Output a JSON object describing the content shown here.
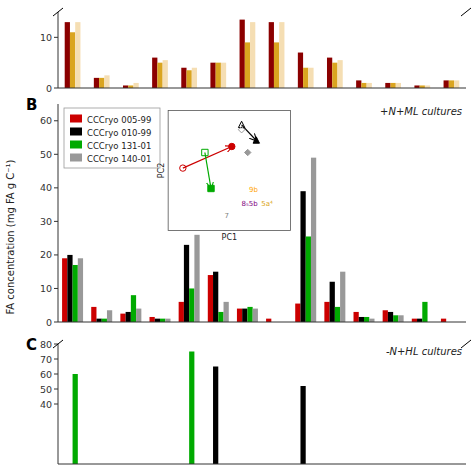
{
  "chart_data": [
    {
      "type": "bar",
      "categories": [
        null,
        null,
        null,
        null,
        null,
        null,
        null,
        null,
        null,
        null,
        null,
        null,
        null,
        null
      ],
      "series": [
        {
          "color": "#8B0000",
          "values": [
            13,
            2,
            0.5,
            6,
            4,
            5,
            13.5,
            13,
            7,
            6,
            1.5,
            1,
            0.5,
            1.5
          ]
        },
        {
          "color": "#DAA520",
          "values": [
            11,
            2,
            0.5,
            5,
            3.5,
            5,
            9,
            9,
            4,
            5,
            1,
            1,
            0.5,
            1.5
          ]
        },
        {
          "color": "#F5DEB3",
          "values": [
            13,
            2.5,
            1,
            5.5,
            4,
            5,
            13,
            13,
            4,
            5.5,
            1,
            1,
            0.5,
            1.5
          ]
        }
      ],
      "ylim": [
        0,
        15
      ],
      "yticks": [
        0,
        10
      ],
      "grid": false,
      "tick_labels": "y"
    },
    {
      "type": "bar",
      "title": "+N+ML cultures",
      "ylabel": "FA concentration (mg FA g C⁻¹)",
      "categories": [
        null,
        null,
        null,
        null,
        null,
        null,
        null,
        null,
        null,
        null,
        null,
        null,
        null,
        null
      ],
      "series": [
        {
          "name": "CCCryo 005-99",
          "color": "#CC0000",
          "values": [
            19,
            4.5,
            2.5,
            1.5,
            6,
            14,
            4,
            1,
            5.5,
            6,
            3,
            3.5,
            1,
            1
          ]
        },
        {
          "name": "CCCryo 010-99",
          "color": "#000000",
          "values": [
            20,
            1,
            3,
            1,
            23,
            15,
            4,
            0,
            39,
            12,
            1.5,
            3,
            1,
            0
          ]
        },
        {
          "name": "CCCryo 131-01",
          "color": "#00AA00",
          "values": [
            17,
            1,
            8,
            1,
            10,
            3,
            4.5,
            0,
            25.5,
            4.5,
            1.5,
            2,
            6,
            0
          ]
        },
        {
          "name": "CCCryo 140-01",
          "color": "#999999",
          "values": [
            19,
            3.5,
            4,
            1,
            26,
            6,
            4,
            0,
            49,
            15,
            1,
            2,
            0,
            0
          ]
        }
      ],
      "ylim": [
        0,
        65
      ],
      "yticks": [
        0,
        10,
        20,
        30,
        40,
        50,
        60
      ],
      "grid": false,
      "tick_labels": "y",
      "legend": "upper left",
      "annotations": [
        {
          "text": "B"
        },
        {
          "text": "PC1"
        },
        {
          "text": "PC2"
        },
        {
          "text": "7",
          "color": "gray"
        },
        {
          "text": "9b",
          "color": "orange"
        },
        {
          "text": "5a⁴",
          "color": "goldenrod"
        },
        {
          "text": "8₅5b",
          "color": "purple"
        }
      ]
    },
    {
      "type": "bar",
      "title": "-N+HL cultures",
      "categories": [
        null,
        null,
        null,
        null,
        null,
        null,
        null,
        null,
        null,
        null,
        null,
        null,
        null,
        null
      ],
      "series": [
        {
          "color": "#CC0000",
          "values": [
            0,
            0,
            0,
            0,
            0,
            0,
            0,
            0,
            0,
            0,
            0,
            0,
            0,
            0
          ]
        },
        {
          "color": "#000000",
          "values": [
            0,
            0,
            0,
            0,
            0,
            65,
            0,
            0,
            52,
            0,
            0,
            0,
            0,
            0
          ]
        },
        {
          "color": "#00AA00",
          "values": [
            60,
            0,
            0,
            0,
            75,
            0,
            0,
            0,
            0,
            0,
            0,
            0,
            0,
            0
          ]
        },
        {
          "color": "#999999",
          "values": [
            0,
            0,
            0,
            0,
            0,
            0,
            0,
            0,
            0,
            0,
            0,
            0,
            0,
            0
          ]
        }
      ],
      "ylim": [
        0,
        80
      ],
      "yticks": [
        40,
        50,
        60,
        70,
        80
      ],
      "grid": false,
      "tick_labels": "y",
      "annotations": [
        {
          "text": "C"
        }
      ]
    }
  ]
}
